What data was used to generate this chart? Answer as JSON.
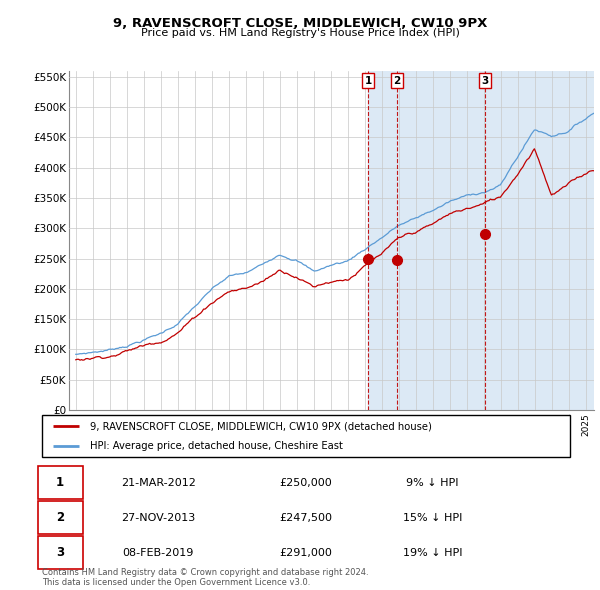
{
  "title": "9, RAVENSCROFT CLOSE, MIDDLEWICH, CW10 9PX",
  "subtitle": "Price paid vs. HM Land Registry's House Price Index (HPI)",
  "legend_line1": "9, RAVENSCROFT CLOSE, MIDDLEWICH, CW10 9PX (detached house)",
  "legend_line2": "HPI: Average price, detached house, Cheshire East",
  "footer1": "Contains HM Land Registry data © Crown copyright and database right 2024.",
  "footer2": "This data is licensed under the Open Government Licence v3.0.",
  "transactions": [
    {
      "num": 1,
      "date": "21-MAR-2012",
      "price": "£250,000",
      "pct": "9% ↓ HPI",
      "year": 2012.21
    },
    {
      "num": 2,
      "date": "27-NOV-2013",
      "price": "£247,500",
      "pct": "15% ↓ HPI",
      "year": 2013.9
    },
    {
      "num": 3,
      "date": "08-FEB-2019",
      "price": "£291,000",
      "pct": "19% ↓ HPI",
      "year": 2019.1
    }
  ],
  "transaction_values": [
    250000,
    247500,
    291000
  ],
  "hpi_color": "#5b9bd5",
  "price_color": "#c00000",
  "marker_color": "#c00000",
  "dashed_color": "#c00000",
  "shading_color": "#dce9f5",
  "background_color": "#ffffff",
  "grid_color": "#c8c8c8",
  "ylim": [
    0,
    560000
  ],
  "yticks": [
    0,
    50000,
    100000,
    150000,
    200000,
    250000,
    300000,
    350000,
    400000,
    450000,
    500000,
    550000
  ],
  "xlim_start": 1994.6,
  "xlim_end": 2025.5
}
